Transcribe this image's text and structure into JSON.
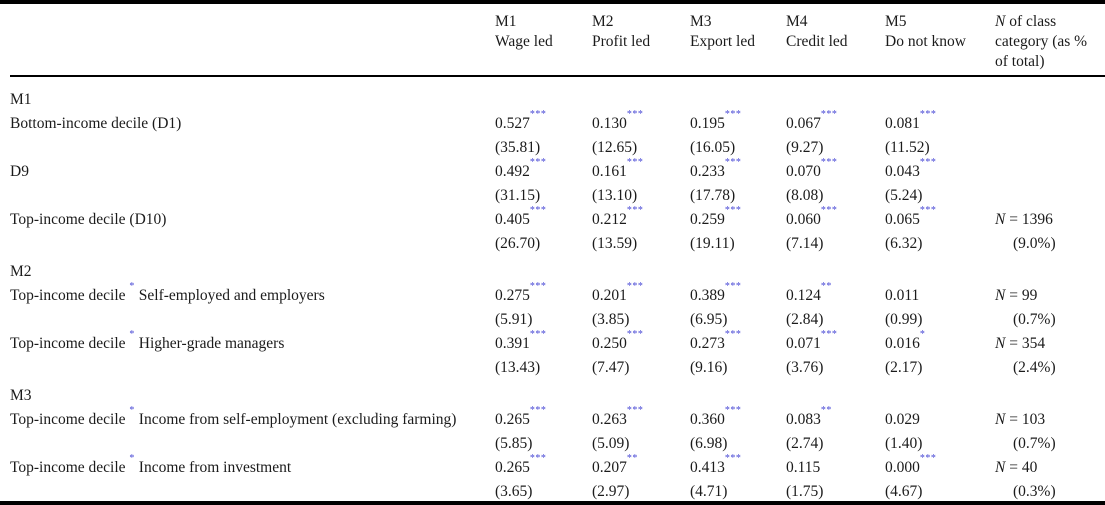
{
  "table": {
    "star_color": "#4a4ad6",
    "header": {
      "model_columns": [
        {
          "model": "M1",
          "label": "Wage led"
        },
        {
          "model": "M2",
          "label": "Profit led"
        },
        {
          "model": "M3",
          "label": "Export led"
        },
        {
          "model": "M4",
          "label": "Credit led"
        },
        {
          "model": "M5",
          "label": "Do not know"
        }
      ],
      "n_column": {
        "symbol": "N",
        "rest": "of class category (as % of total)"
      }
    },
    "sections": [
      {
        "name": "M1",
        "rows": [
          {
            "label": {
              "pre": "Bottom-income decile (D1)"
            },
            "coefs": [
              {
                "v": "0.527",
                "s": "***"
              },
              {
                "v": "0.130",
                "s": "***"
              },
              {
                "v": "0.195",
                "s": "***"
              },
              {
                "v": "0.067",
                "s": "***"
              },
              {
                "v": "0.081",
                "s": "***"
              }
            ],
            "tstats": [
              "(35.81)",
              "(12.65)",
              "(16.05)",
              "(9.27)",
              "(11.52)"
            ]
          },
          {
            "label": {
              "pre": "D9"
            },
            "coefs": [
              {
                "v": "0.492",
                "s": "***"
              },
              {
                "v": "0.161",
                "s": "***"
              },
              {
                "v": "0.233",
                "s": "***"
              },
              {
                "v": "0.070",
                "s": "***"
              },
              {
                "v": "0.043",
                "s": "***"
              }
            ],
            "tstats": [
              "(31.15)",
              "(13.10)",
              "(17.78)",
              "(8.08)",
              "(5.24)"
            ]
          },
          {
            "label": {
              "pre": "Top-income decile (D10)"
            },
            "coefs": [
              {
                "v": "0.405",
                "s": "***"
              },
              {
                "v": "0.212",
                "s": "***"
              },
              {
                "v": "0.259",
                "s": "***"
              },
              {
                "v": "0.060",
                "s": "***"
              },
              {
                "v": "0.065",
                "s": "***"
              }
            ],
            "tstats": [
              "(26.70)",
              "(13.59)",
              "(19.11)",
              "(7.14)",
              "(6.32)"
            ],
            "n": {
              "symbol": "N",
              "value": "= 1396",
              "pct": "(9.0%)"
            }
          }
        ]
      },
      {
        "name": "M2",
        "rows": [
          {
            "label": {
              "pre": "Top-income decile",
              "star": "*",
              "post": "Self-employed and employers"
            },
            "coefs": [
              {
                "v": "0.275",
                "s": "***"
              },
              {
                "v": "0.201",
                "s": "***"
              },
              {
                "v": "0.389",
                "s": "***"
              },
              {
                "v": "0.124",
                "s": "**"
              },
              {
                "v": "0.011",
                "s": ""
              }
            ],
            "tstats": [
              "(5.91)",
              "(3.85)",
              "(6.95)",
              "(2.84)",
              "(0.99)"
            ],
            "n": {
              "symbol": "N",
              "value": "= 99",
              "pct": "(0.7%)"
            }
          },
          {
            "label": {
              "pre": "Top-income decile",
              "star": "*",
              "post": "Higher-grade managers"
            },
            "coefs": [
              {
                "v": "0.391",
                "s": "***"
              },
              {
                "v": "0.250",
                "s": "***"
              },
              {
                "v": "0.273",
                "s": "***"
              },
              {
                "v": "0.071",
                "s": "***"
              },
              {
                "v": "0.016",
                "s": "*"
              }
            ],
            "tstats": [
              "(13.43)",
              "(7.47)",
              "(9.16)",
              "(3.76)",
              "(2.17)"
            ],
            "n": {
              "symbol": "N",
              "value": "= 354",
              "pct": "(2.4%)"
            }
          }
        ]
      },
      {
        "name": "M3",
        "rows": [
          {
            "label": {
              "pre": "Top-income decile",
              "star": "*",
              "post": "Income from self-employment (excluding farming)"
            },
            "coefs": [
              {
                "v": "0.265",
                "s": "***"
              },
              {
                "v": "0.263",
                "s": "***"
              },
              {
                "v": "0.360",
                "s": "***"
              },
              {
                "v": "0.083",
                "s": "**"
              },
              {
                "v": "0.029",
                "s": ""
              }
            ],
            "tstats": [
              "(5.85)",
              "(5.09)",
              "(6.98)",
              "(2.74)",
              "(1.40)"
            ],
            "n": {
              "symbol": "N",
              "value": "= 103",
              "pct": "(0.7%)"
            }
          },
          {
            "label": {
              "pre": "Top-income decile",
              "star": "*",
              "post": "Income from investment"
            },
            "coefs": [
              {
                "v": "0.265",
                "s": "***"
              },
              {
                "v": "0.207",
                "s": "**"
              },
              {
                "v": "0.413",
                "s": "***"
              },
              {
                "v": "0.115",
                "s": ""
              },
              {
                "v": "0.000",
                "s": "***"
              }
            ],
            "tstats": [
              "(3.65)",
              "(2.97)",
              "(4.71)",
              "(1.75)",
              "(4.67)"
            ],
            "n": {
              "symbol": "N",
              "value": "= 40",
              "pct": "(0.3%)"
            }
          }
        ]
      }
    ]
  }
}
